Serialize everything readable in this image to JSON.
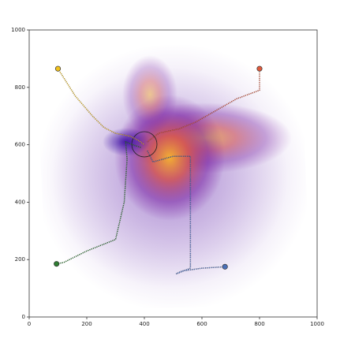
{
  "chart_data": {
    "type": "line",
    "xlim": [
      0,
      1000
    ],
    "ylim": [
      0,
      1000
    ],
    "xticks": [
      0,
      200,
      400,
      600,
      800,
      1000
    ],
    "yticks": [
      0,
      200,
      400,
      600,
      800,
      1000
    ],
    "series": [
      {
        "color": "#f2c21b",
        "x": [
          100,
          160,
          220,
          260,
          300,
          350,
          380,
          400
        ],
        "values": [
          865,
          770,
          700,
          660,
          640,
          630,
          615,
          600
        ]
      },
      {
        "color": "#e05a3c",
        "x": [
          800,
          800,
          720,
          650,
          580,
          520,
          450,
          410
        ],
        "values": [
          865,
          790,
          760,
          720,
          680,
          655,
          640,
          610
        ]
      },
      {
        "color": "#2e7d32",
        "x": [
          95,
          120,
          200,
          300,
          330,
          340,
          335,
          360,
          390
        ],
        "values": [
          185,
          190,
          230,
          270,
          400,
          550,
          610,
          600,
          590
        ]
      },
      {
        "color": "#4a70b8",
        "x": [
          680,
          600,
          530,
          510,
          560,
          560,
          500,
          430,
          410
        ],
        "values": [
          175,
          170,
          160,
          150,
          170,
          560,
          560,
          540,
          580
        ]
      }
    ]
  }
}
